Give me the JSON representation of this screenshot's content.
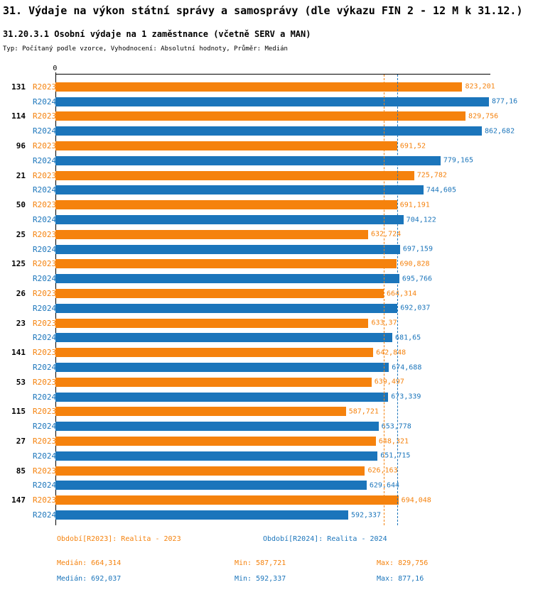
{
  "header": {
    "title": "31. Výdaje na výkon státní správy a samosprávy (dle výkazu FIN 2 - 12 M k 31.12.)",
    "subtitle": "31.20.3.1 Osobní výdaje na 1 zaměstnance (včetně SERV a MAN)",
    "meta": "Typ: Počítaný podle vzorce, Vyhodnocení: Absolutní hodnoty, Průměr: Medián"
  },
  "chart_data": {
    "type": "bar",
    "orientation": "horizontal",
    "x_axis": {
      "zero_label": "0",
      "min": 0,
      "max": 880,
      "grid": false
    },
    "categories": [
      "131",
      "114",
      "96",
      "21",
      "50",
      "25",
      "125",
      "26",
      "23",
      "141",
      "53",
      "115",
      "27",
      "85",
      "147"
    ],
    "series": [
      {
        "name": "R2023",
        "legend": "Období[R2023]: Realita - 2023",
        "color": "#F5820D",
        "values": [
          823.201,
          829.756,
          691.52,
          725.782,
          691.191,
          632.724,
          690.828,
          664.314,
          633.37,
          642.848,
          639.497,
          587.721,
          648.321,
          626.163,
          694.048
        ],
        "value_labels": [
          "823,201",
          "829,756",
          "691,52",
          "725,782",
          "691,191",
          "632,724",
          "690,828",
          "664,314",
          "633,37",
          "642,848",
          "639,497",
          "587,721",
          "648,321",
          "626,163",
          "694,048"
        ],
        "median": 664.314
      },
      {
        "name": "R2024",
        "legend": "Období[R2024]: Realita - 2024",
        "color": "#1B75BB",
        "values": [
          877.16,
          862.682,
          779.165,
          744.605,
          704.122,
          697.159,
          695.766,
          692.037,
          681.65,
          674.688,
          673.339,
          653.778,
          651.715,
          629.644,
          592.337
        ],
        "value_labels": [
          "877,16",
          "862,682",
          "779,165",
          "744,605",
          "704,122",
          "697,159",
          "695,766",
          "692,037",
          "681,65",
          "674,688",
          "673,339",
          "653,778",
          "651,715",
          "629,644",
          "592,337"
        ],
        "median": 692.037
      }
    ],
    "median_lines": [
      {
        "value": 664.314,
        "color": "#F5820D"
      },
      {
        "value": 692.037,
        "color": "#1B75BB"
      }
    ],
    "legend_position": "bottom"
  },
  "legend": [
    {
      "label": "Období[R2023]: Realita - 2023",
      "color": "#F5820D"
    },
    {
      "label": "Období[R2024]: Realita - 2024",
      "color": "#1B75BB"
    }
  ],
  "stats": [
    {
      "median": "Medián: 664,314",
      "min": "Min: 587,721",
      "max": "Max: 829,756",
      "color": "#F5820D"
    },
    {
      "median": "Medián: 692,037",
      "min": "Min: 592,337",
      "max": "Max: 877,16",
      "color": "#1B75BB"
    }
  ]
}
